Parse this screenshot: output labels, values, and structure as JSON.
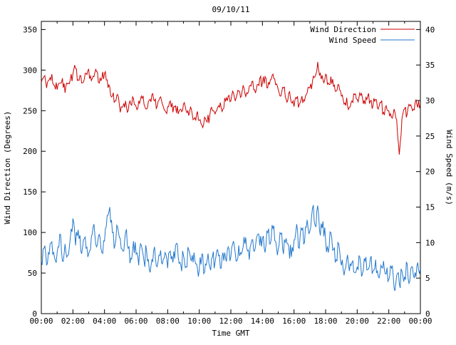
{
  "title": "09/10/11",
  "legend": {
    "series1_label": "Wind Direction",
    "series2_label": "Wind Speed"
  },
  "axes": {
    "x": {
      "label": "Time GMT",
      "ticks": [
        "00:00",
        "02:00",
        "04:00",
        "06:00",
        "08:00",
        "10:00",
        "12:00",
        "14:00",
        "16:00",
        "18:00",
        "20:00",
        "22:00",
        "00:00"
      ],
      "range_minutes": [
        0,
        1440
      ]
    },
    "y_left": {
      "label": "Wind Direction (Degrees)",
      "ticks": [
        0,
        50,
        100,
        150,
        200,
        250,
        300,
        350
      ],
      "range": [
        0,
        360
      ]
    },
    "y_right": {
      "label": "Wind Speed (m/s)",
      "ticks": [
        0,
        5,
        10,
        15,
        20,
        25,
        30,
        35,
        40
      ],
      "range": [
        0,
        41.14
      ]
    }
  },
  "chart_data": {
    "type": "line",
    "title": "09/10/11",
    "xlabel": "Time GMT",
    "ylabel_left": "Wind Direction (Degrees)",
    "ylabel_right": "Wind Speed (m/s)",
    "ylim_left": [
      0,
      360
    ],
    "ylim_right": [
      0,
      41.14
    ],
    "grid": false,
    "legend_position": "top-right-inside",
    "sample_step_minutes": 10,
    "series": [
      {
        "name": "Wind Direction",
        "axis": "left",
        "unit": "degrees",
        "color": "#cc0000",
        "noise_amp": 7,
        "values": [
          285,
          292,
          278,
          288,
          295,
          281,
          276,
          284,
          290,
          272,
          283,
          288,
          295,
          302,
          288,
          293,
          285,
          296,
          301,
          287,
          292,
          298,
          284,
          290,
          296,
          288,
          279,
          268,
          262,
          270,
          248,
          255,
          262,
          250,
          258,
          265,
          255,
          262,
          268,
          258,
          252,
          263,
          270,
          262,
          255,
          266,
          258,
          250,
          255,
          262,
          248,
          256,
          246,
          252,
          258,
          250,
          244,
          252,
          240,
          246,
          238,
          232,
          242,
          236,
          244,
          250,
          246,
          254,
          260,
          252,
          262,
          268,
          262,
          272,
          266,
          274,
          268,
          278,
          272,
          280,
          286,
          276,
          282,
          290,
          284,
          292,
          278,
          288,
          295,
          282,
          276,
          268,
          278,
          264,
          272,
          260,
          255,
          265,
          258,
          268,
          262,
          272,
          278,
          286,
          292,
          310,
          296,
          288,
          295,
          284,
          292,
          280,
          274,
          282,
          268,
          258,
          266,
          254,
          262,
          270,
          264,
          272,
          266,
          258,
          268,
          262,
          256,
          264,
          252,
          260,
          248,
          256,
          250,
          242,
          252,
          238,
          196,
          240,
          252,
          246,
          256,
          250,
          260,
          254,
          258
        ]
      },
      {
        "name": "Wind Speed",
        "axis": "right",
        "unit": "m/s",
        "color": "#2277cc",
        "noise_amp": 1.3,
        "values": [
          7.5,
          9.2,
          6.8,
          8.4,
          10.1,
          7.9,
          8.6,
          11.2,
          7.4,
          9.8,
          8.2,
          10.6,
          13.4,
          9.6,
          11.8,
          8.8,
          10.4,
          9.2,
          8.4,
          10.8,
          12.6,
          9.4,
          11.2,
          8.6,
          10.2,
          13.8,
          15.0,
          11.4,
          9.6,
          12.2,
          10.6,
          8.8,
          11.4,
          9.2,
          7.8,
          10.2,
          8.4,
          6.8,
          9.6,
          7.4,
          8.8,
          6.2,
          7.6,
          9.4,
          6.6,
          8.2,
          7.0,
          8.6,
          6.4,
          8.8,
          7.2,
          9.6,
          8.0,
          6.8,
          8.2,
          6.6,
          9.0,
          7.4,
          8.6,
          7.0,
          6.2,
          8.4,
          5.8,
          7.6,
          6.6,
          8.0,
          7.2,
          9.0,
          6.4,
          8.6,
          7.8,
          9.4,
          8.0,
          10.2,
          7.4,
          9.6,
          8.4,
          10.8,
          9.2,
          7.6,
          10.4,
          8.8,
          11.0,
          9.6,
          10.6,
          8.6,
          11.4,
          9.8,
          12.0,
          10.2,
          9.0,
          11.2,
          8.4,
          10.6,
          9.4,
          8.0,
          10.4,
          12.6,
          9.2,
          11.8,
          10.0,
          13.2,
          11.6,
          14.8,
          12.4,
          15.2,
          11.0,
          13.0,
          10.2,
          8.6,
          11.4,
          9.0,
          7.6,
          9.8,
          6.8,
          5.4,
          7.6,
          6.0,
          7.2,
          5.8,
          6.6,
          8.0,
          5.6,
          7.4,
          6.2,
          7.8,
          6.0,
          7.6,
          5.2,
          6.8,
          7.4,
          5.6,
          4.8,
          6.4,
          3.6,
          5.4,
          4.2,
          6.0,
          5.2,
          7.0,
          4.6,
          6.6,
          5.8,
          7.2,
          6.4
        ]
      }
    ]
  }
}
